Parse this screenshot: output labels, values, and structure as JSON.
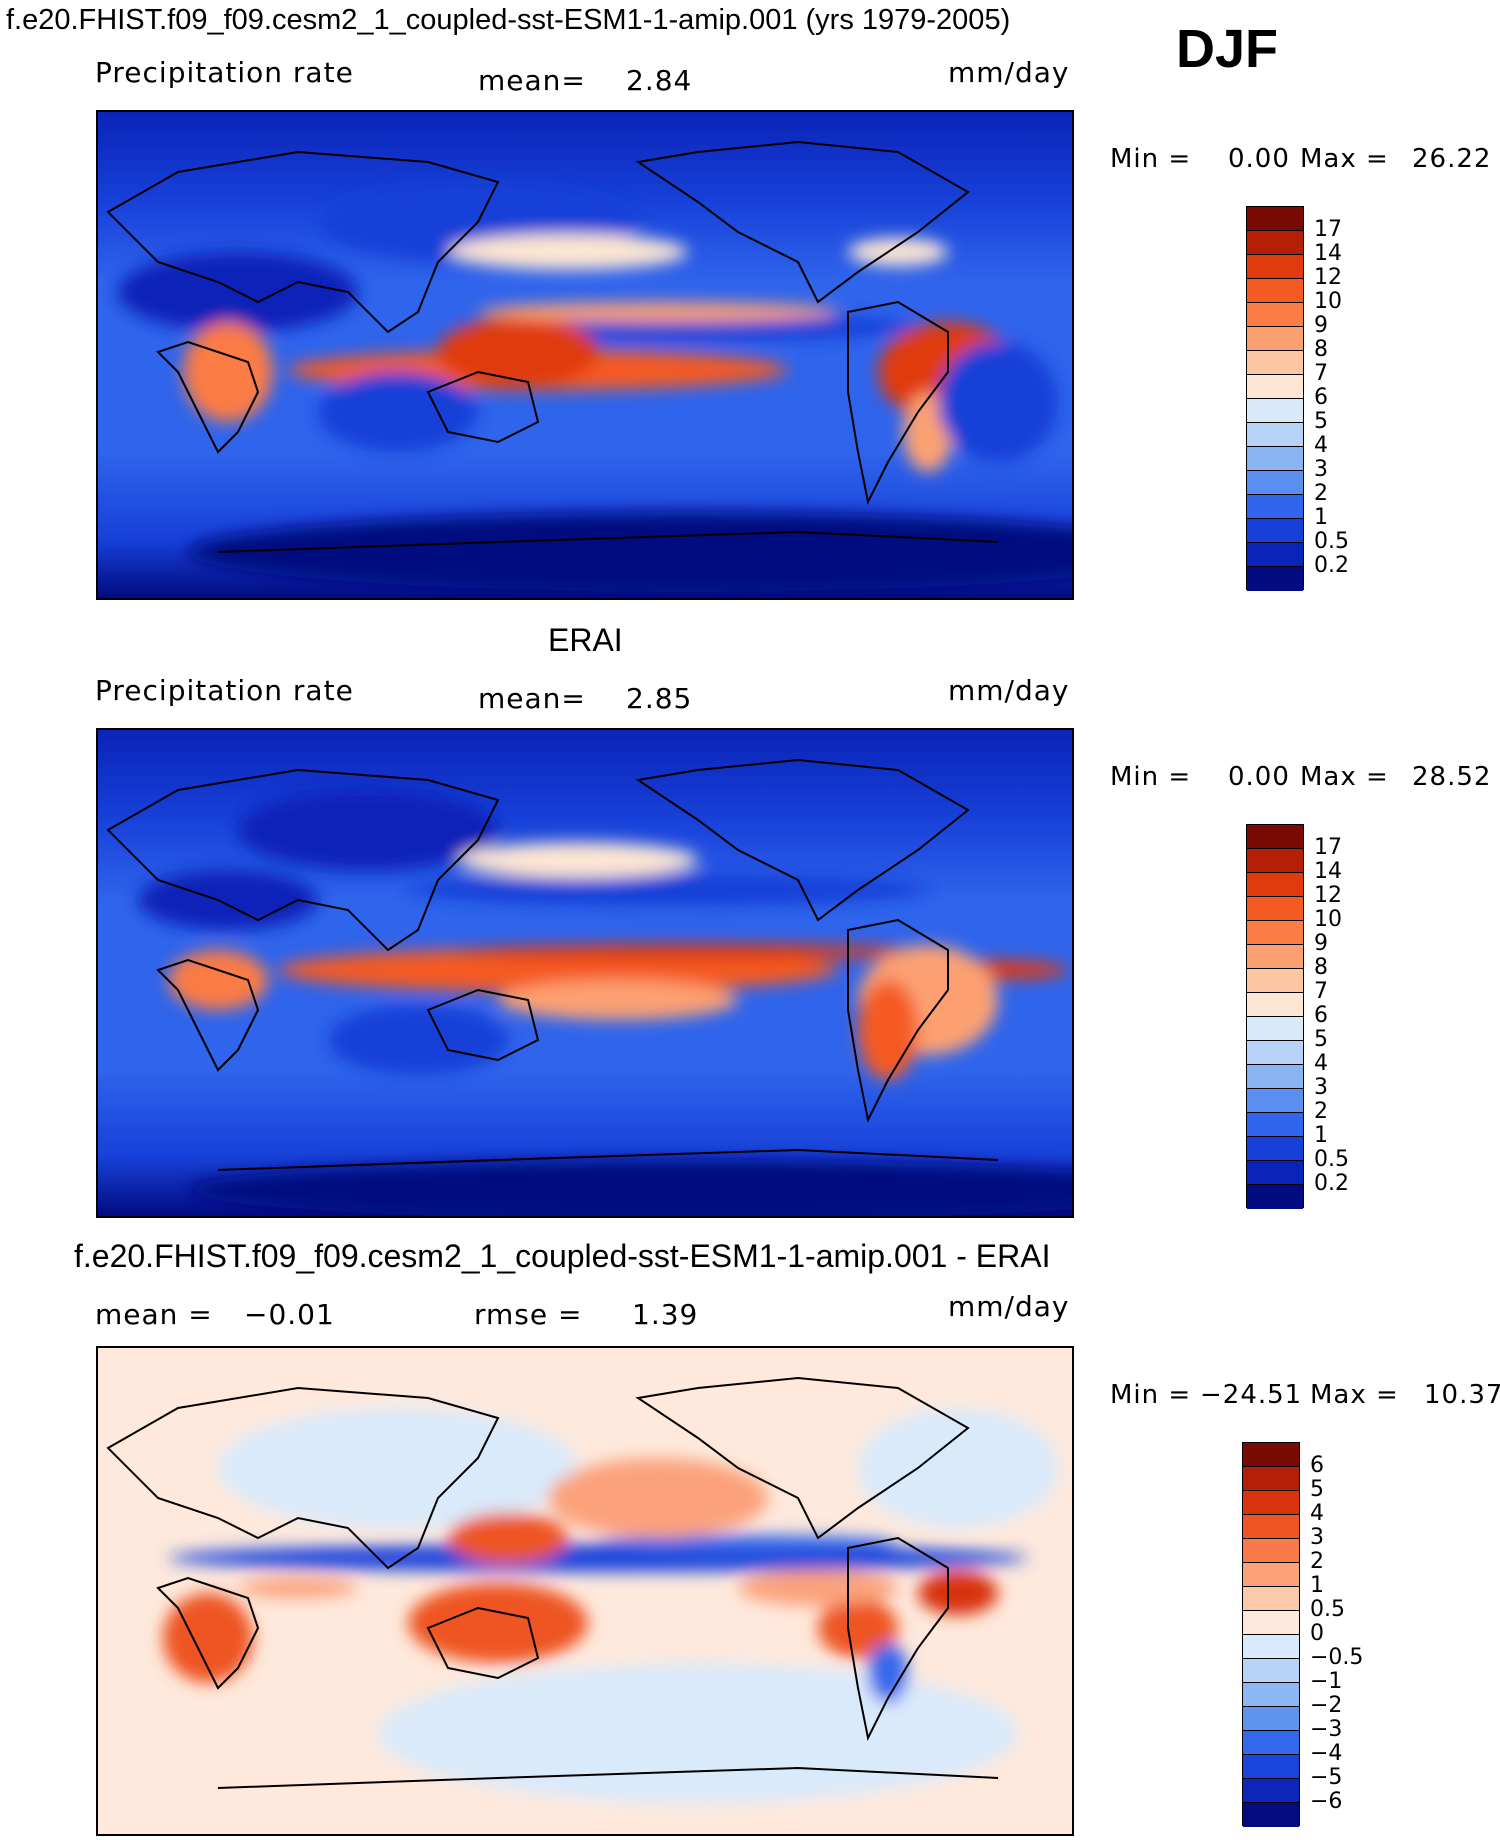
{
  "header": {
    "title": "f.e20.FHIST.f09_f09.cesm2_1_coupled-sst-ESM1-1-amip.001 (yrs 1979-2005)",
    "season": "DJF"
  },
  "panels": [
    {
      "id": "model",
      "title": "",
      "field": "Precipitation rate",
      "stat_label": "mean=",
      "stat_value": "2.84",
      "units": "mm/day",
      "min_label": "Min =",
      "min_value": "0.00",
      "max_label": "Max =",
      "max_value": "26.22",
      "levels": [
        "17",
        "14",
        "12",
        "10",
        "9",
        "8",
        "7",
        "6",
        "5",
        "4",
        "3",
        "2",
        "1",
        "0.5",
        "0.2"
      ],
      "colors": [
        "#7a0b04",
        "#b51f06",
        "#e03a0e",
        "#f55a22",
        "#fb7c44",
        "#fca072",
        "#fdc6a2",
        "#fde6d3",
        "#d8eafa",
        "#b6d3f7",
        "#8ab5f3",
        "#5a8ff0",
        "#2f64ec",
        "#1740d8",
        "#0a24b8",
        "#020b80"
      ]
    },
    {
      "id": "obs",
      "title": "ERAI",
      "field": "Precipitation rate",
      "stat_label": "mean=",
      "stat_value": "2.85",
      "units": "mm/day",
      "min_label": "Min =",
      "min_value": "0.00",
      "max_label": "Max =",
      "max_value": "28.52",
      "levels": [
        "17",
        "14",
        "12",
        "10",
        "9",
        "8",
        "7",
        "6",
        "5",
        "4",
        "3",
        "2",
        "1",
        "0.5",
        "0.2"
      ],
      "colors": [
        "#7a0b04",
        "#b51f06",
        "#e03a0e",
        "#f55a22",
        "#fb7c44",
        "#fca072",
        "#fdc6a2",
        "#fde6d3",
        "#d8eafa",
        "#b6d3f7",
        "#8ab5f3",
        "#5a8ff0",
        "#2f64ec",
        "#1740d8",
        "#0a24b8",
        "#020b80"
      ]
    },
    {
      "id": "diff",
      "title": "f.e20.FHIST.f09_f09.cesm2_1_coupled-sst-ESM1-1-amip.001 - ERAI",
      "field": "",
      "stat_label": "mean =",
      "stat_value": "−0.01",
      "stat2_label": "rmse =",
      "stat2_value": "1.39",
      "units": "mm/day",
      "min_label": "Min =",
      "min_value": "−24.51",
      "max_label": "Max =",
      "max_value": "10.37",
      "levels": [
        "6",
        "5",
        "4",
        "3",
        "2",
        "1",
        "0.5",
        "0",
        "−0.5",
        "−1",
        "−2",
        "−3",
        "−4",
        "−5",
        "−6"
      ],
      "colors": [
        "#7a0b04",
        "#b51f06",
        "#d8330c",
        "#ee5424",
        "#f8794a",
        "#fba27b",
        "#fdc9ab",
        "#fee9dc",
        "#d9eafb",
        "#b7d3f8",
        "#8db7f4",
        "#5f93f0",
        "#3468ec",
        "#1a44dc",
        "#0b26b8",
        "#030c80"
      ]
    }
  ]
}
